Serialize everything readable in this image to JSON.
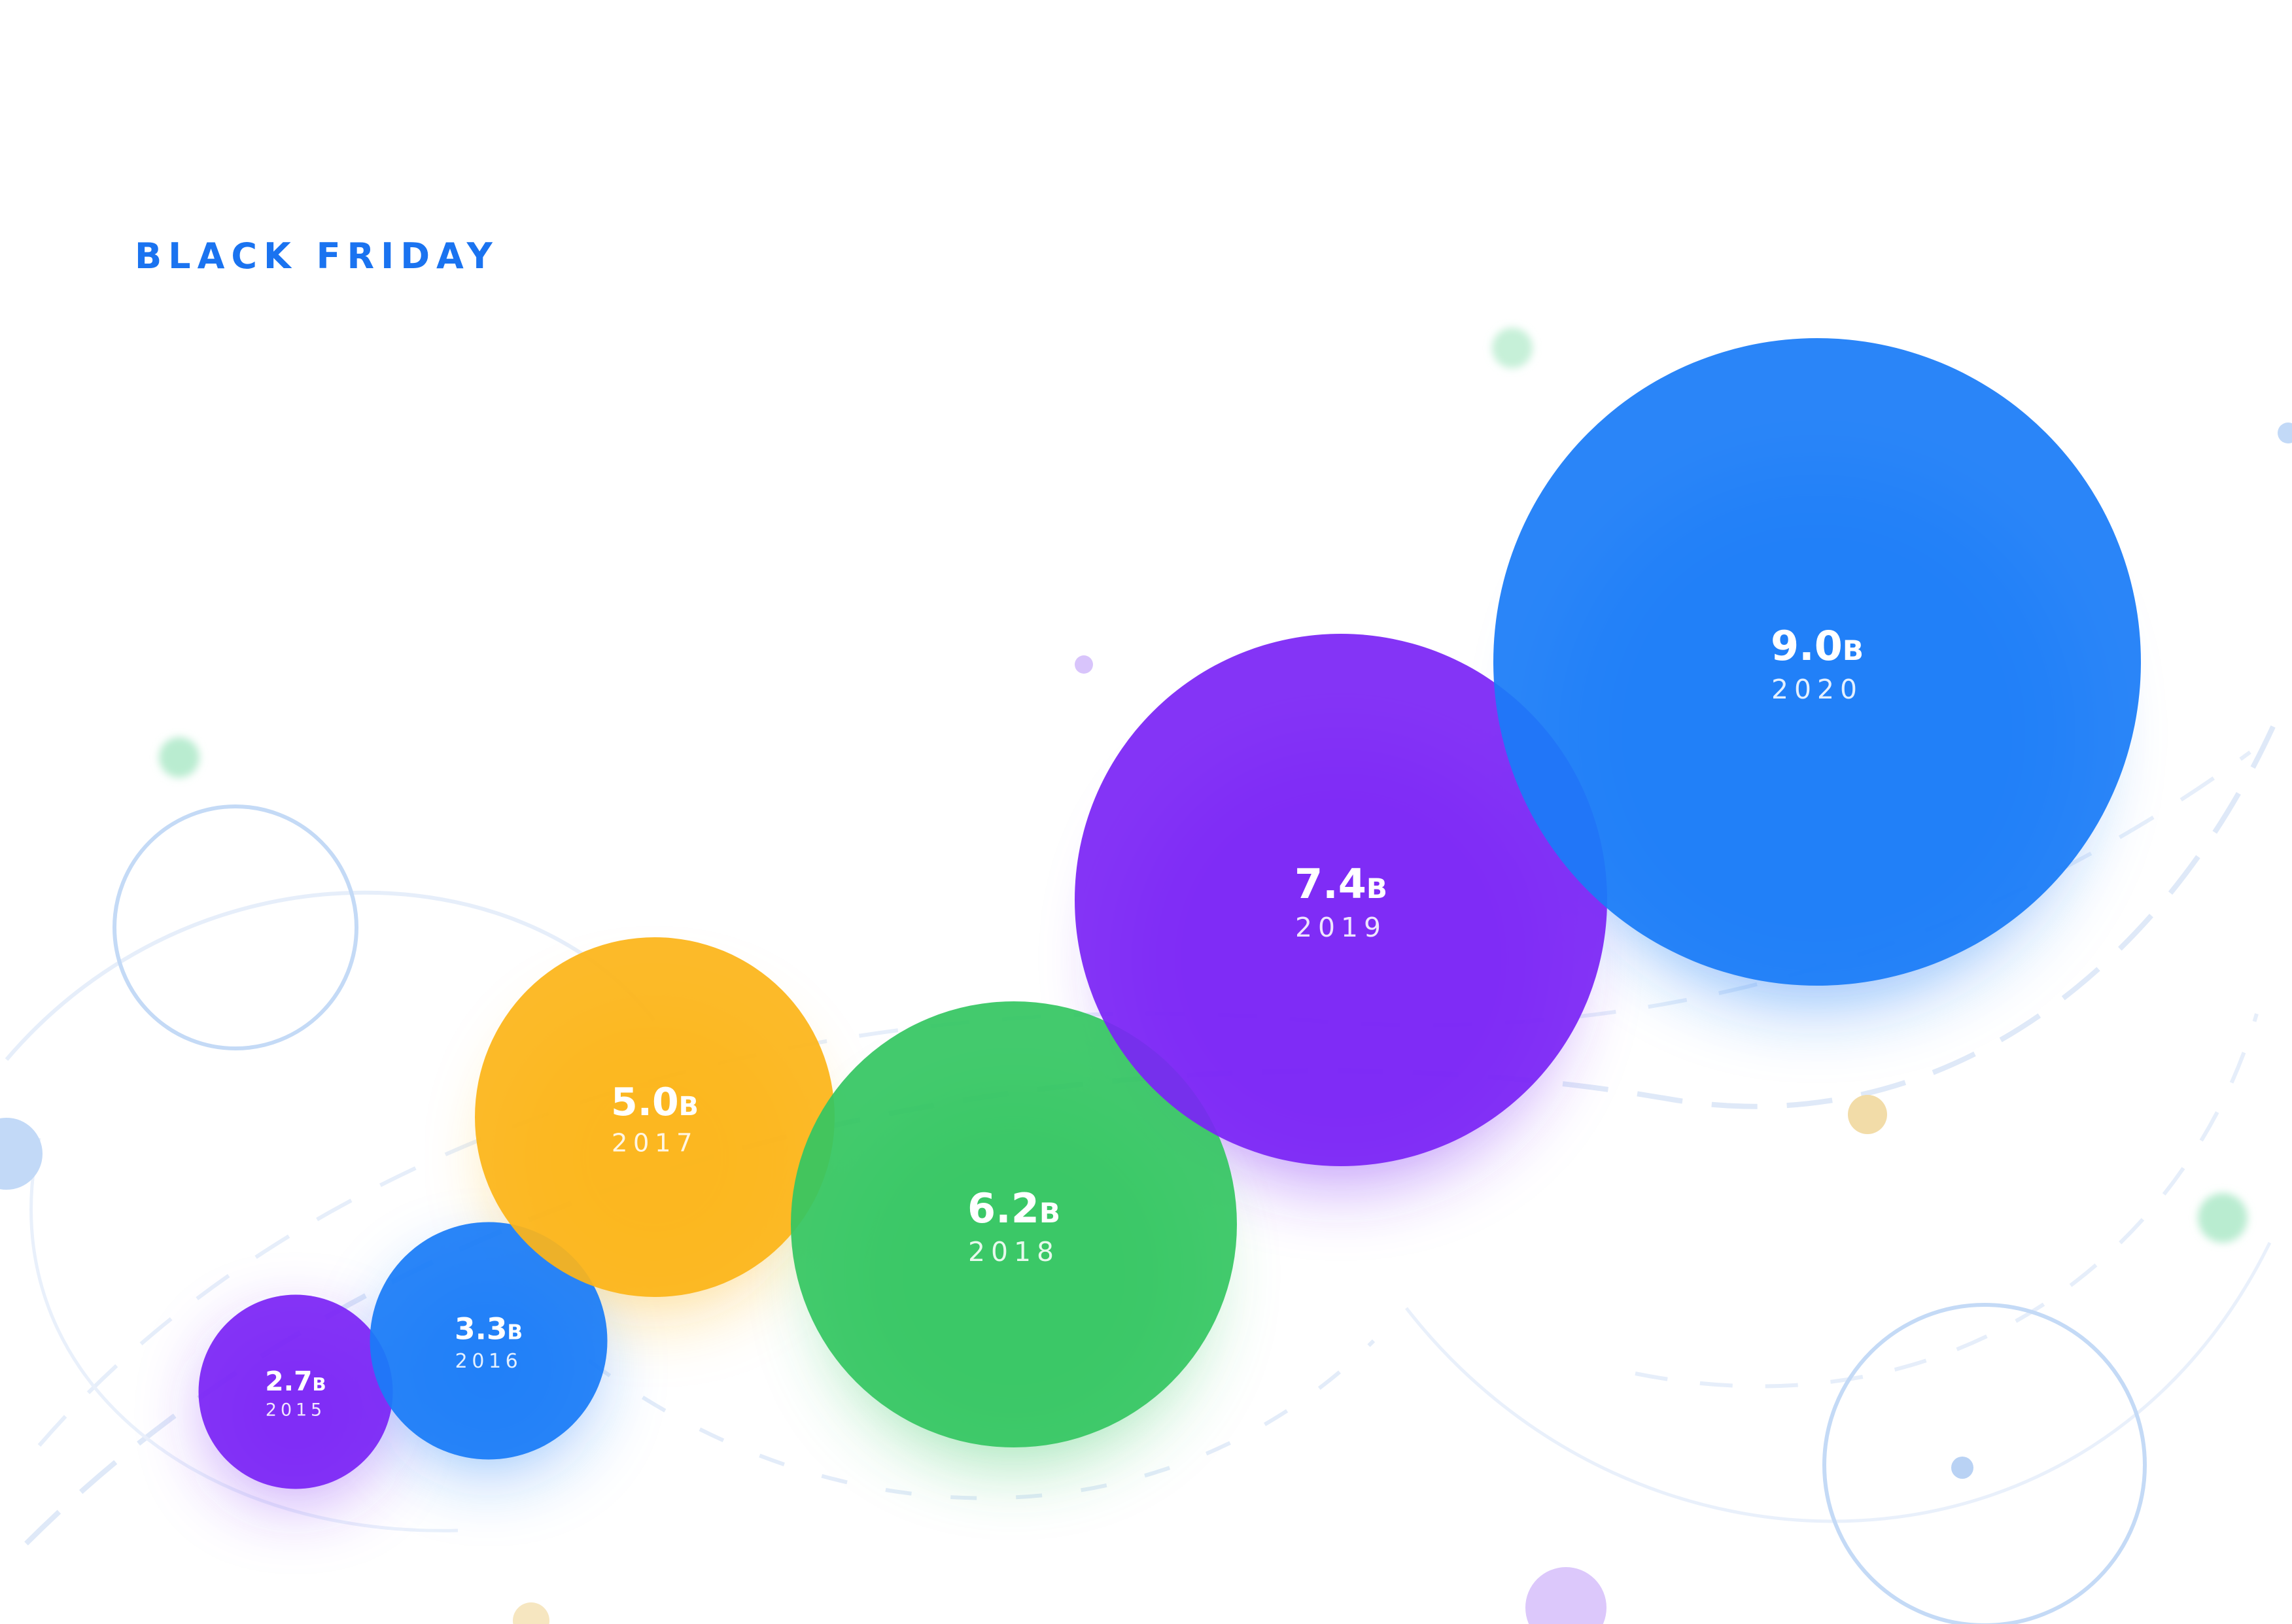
{
  "title": "BLACK FRIDAY",
  "colors": {
    "title": "#1a73f0",
    "blue": "#1a7cf7",
    "purple": "#7b25f5",
    "yellow": "#fcb519",
    "green": "#35c662",
    "pale_green": "#b9ecd0",
    "pale_blue": "#c2d9f7",
    "pale_purple": "#dcc8fb",
    "pale_yellow": "#f2dca8"
  },
  "chart_data": {
    "type": "bubble",
    "title": "BLACK FRIDAY",
    "unit_suffix": "B",
    "series": [
      {
        "name": "",
        "points": [
          {
            "x": "2015",
            "value": 2.7,
            "label": "2.7",
            "suffix": "B",
            "color": "#7b25f5"
          },
          {
            "x": "2016",
            "value": 3.3,
            "label": "3.3",
            "suffix": "B",
            "color": "#1a7cf7"
          },
          {
            "x": "2017",
            "value": 5.0,
            "label": "5.0",
            "suffix": "B",
            "color": "#fcb519"
          },
          {
            "x": "2018",
            "value": 6.2,
            "label": "6.2",
            "suffix": "B",
            "color": "#35c662"
          },
          {
            "x": "2019",
            "value": 7.4,
            "label": "7.4",
            "suffix": "B",
            "color": "#7b25f5"
          },
          {
            "x": "2020",
            "value": 9.0,
            "label": "9.0",
            "suffix": "B",
            "color": "#1a7cf7"
          }
        ]
      }
    ],
    "legend": "none",
    "grid": false
  }
}
